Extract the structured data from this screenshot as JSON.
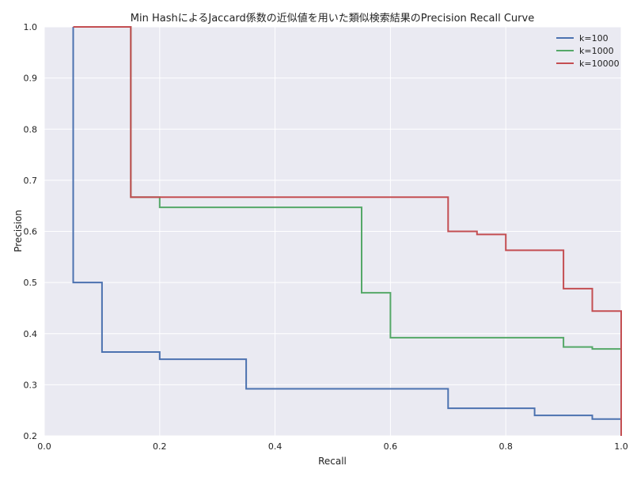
{
  "chart_data": {
    "type": "line",
    "step": true,
    "title": "Min HashによるJaccard係数の近似値を用いた類似検索結果のPrecision Recall Curve",
    "xlabel": "Recall",
    "ylabel": "Precision",
    "xlim": [
      0.0,
      1.0
    ],
    "ylim": [
      0.2,
      1.0
    ],
    "xticks": [
      "0.0",
      "0.2",
      "0.4",
      "0.6",
      "0.8",
      "1.0"
    ],
    "yticks": [
      "0.2",
      "0.3",
      "0.4",
      "0.5",
      "0.6",
      "0.7",
      "0.8",
      "0.9",
      "1.0"
    ],
    "grid": true,
    "background": "#eaeaf2",
    "legend_position": "top-right",
    "series": [
      {
        "name": "k=100",
        "color": "#4c72b0",
        "points": [
          [
            0.05,
            1.0
          ],
          [
            0.05,
            0.5
          ],
          [
            0.1,
            0.5
          ],
          [
            0.1,
            0.364
          ],
          [
            0.2,
            0.364
          ],
          [
            0.2,
            0.35
          ],
          [
            0.35,
            0.35
          ],
          [
            0.35,
            0.292
          ],
          [
            0.7,
            0.292
          ],
          [
            0.7,
            0.254
          ],
          [
            0.85,
            0.254
          ],
          [
            0.85,
            0.24
          ],
          [
            0.95,
            0.24
          ],
          [
            0.95,
            0.233
          ],
          [
            1.0,
            0.233
          ],
          [
            1.0,
            0.2
          ]
        ]
      },
      {
        "name": "k=1000",
        "color": "#55a868",
        "points": [
          [
            0.05,
            1.0
          ],
          [
            0.15,
            1.0
          ],
          [
            0.15,
            0.667
          ],
          [
            0.2,
            0.667
          ],
          [
            0.2,
            0.647
          ],
          [
            0.55,
            0.647
          ],
          [
            0.55,
            0.48
          ],
          [
            0.6,
            0.48
          ],
          [
            0.6,
            0.392
          ],
          [
            0.9,
            0.392
          ],
          [
            0.9,
            0.374
          ],
          [
            0.95,
            0.374
          ],
          [
            0.95,
            0.37
          ],
          [
            1.0,
            0.37
          ]
        ]
      },
      {
        "name": "k=10000",
        "color": "#c44e52",
        "points": [
          [
            0.05,
            1.0
          ],
          [
            0.15,
            1.0
          ],
          [
            0.15,
            0.667
          ],
          [
            0.7,
            0.667
          ],
          [
            0.7,
            0.6
          ],
          [
            0.75,
            0.6
          ],
          [
            0.75,
            0.594
          ],
          [
            0.8,
            0.594
          ],
          [
            0.8,
            0.563
          ],
          [
            0.9,
            0.563
          ],
          [
            0.9,
            0.488
          ],
          [
            0.95,
            0.488
          ],
          [
            0.95,
            0.444
          ],
          [
            1.0,
            0.444
          ],
          [
            1.0,
            0.2
          ]
        ]
      }
    ]
  }
}
